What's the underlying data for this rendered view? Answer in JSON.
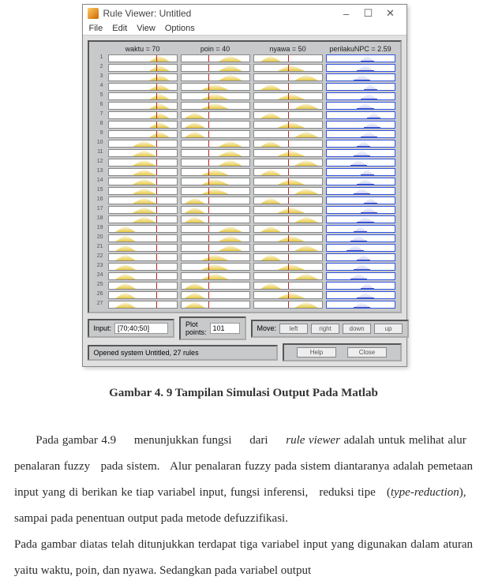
{
  "window": {
    "title": "Rule Viewer: Untitled",
    "minimize": "–",
    "restore": "☐",
    "close": "✕"
  },
  "menu": {
    "file": "File",
    "edit": "Edit",
    "view": "View",
    "options": "Options"
  },
  "viewer": {
    "headers": {
      "blank": "",
      "col1": "waktu = 70",
      "col2": "poin = 40",
      "col3": "nyawa = 50",
      "col4": "perilakuNPC = 2.59"
    },
    "num_rules": 27,
    "line_positions": {
      "col1": 70,
      "col2": 40,
      "col3": 50
    },
    "colors": {
      "mf_fill": "#e6c83c",
      "mf_output": "#3c50c8",
      "vline": "#c02020",
      "panel_bg": "#c8c9cb",
      "box_border": "#888888",
      "output_border": "#3355dd"
    },
    "rules": [
      {
        "c1": [
          60,
          30
        ],
        "c2": [
          55,
          35
        ],
        "c3": [
          10,
          30
        ],
        "c4": [
          50,
          20
        ]
      },
      {
        "c1": [
          60,
          30
        ],
        "c2": [
          55,
          35
        ],
        "c3": [
          35,
          40
        ],
        "c4": [
          45,
          25
        ]
      },
      {
        "c1": [
          60,
          30
        ],
        "c2": [
          55,
          35
        ],
        "c3": [
          60,
          35
        ],
        "c4": [
          40,
          25
        ]
      },
      {
        "c1": [
          60,
          30
        ],
        "c2": [
          30,
          40
        ],
        "c3": [
          10,
          30
        ],
        "c4": [
          55,
          20
        ]
      },
      {
        "c1": [
          60,
          30
        ],
        "c2": [
          30,
          40
        ],
        "c3": [
          35,
          40
        ],
        "c4": [
          50,
          25
        ]
      },
      {
        "c1": [
          60,
          30
        ],
        "c2": [
          30,
          40
        ],
        "c3": [
          60,
          35
        ],
        "c4": [
          45,
          25
        ]
      },
      {
        "c1": [
          60,
          30
        ],
        "c2": [
          5,
          30
        ],
        "c3": [
          10,
          30
        ],
        "c4": [
          60,
          20
        ]
      },
      {
        "c1": [
          60,
          30
        ],
        "c2": [
          5,
          30
        ],
        "c3": [
          35,
          40
        ],
        "c4": [
          55,
          25
        ]
      },
      {
        "c1": [
          60,
          30
        ],
        "c2": [
          5,
          30
        ],
        "c3": [
          60,
          35
        ],
        "c4": [
          50,
          25
        ]
      },
      {
        "c1": [
          35,
          35
        ],
        "c2": [
          55,
          35
        ],
        "c3": [
          10,
          30
        ],
        "c4": [
          45,
          20
        ]
      },
      {
        "c1": [
          35,
          35
        ],
        "c2": [
          55,
          35
        ],
        "c3": [
          35,
          40
        ],
        "c4": [
          40,
          25
        ]
      },
      {
        "c1": [
          35,
          35
        ],
        "c2": [
          55,
          35
        ],
        "c3": [
          60,
          35
        ],
        "c4": [
          35,
          25
        ]
      },
      {
        "c1": [
          35,
          35
        ],
        "c2": [
          30,
          40
        ],
        "c3": [
          10,
          30
        ],
        "c4": [
          50,
          20
        ]
      },
      {
        "c1": [
          35,
          35
        ],
        "c2": [
          30,
          40
        ],
        "c3": [
          35,
          40
        ],
        "c4": [
          45,
          25
        ]
      },
      {
        "c1": [
          35,
          35
        ],
        "c2": [
          30,
          40
        ],
        "c3": [
          60,
          35
        ],
        "c4": [
          40,
          25
        ]
      },
      {
        "c1": [
          35,
          35
        ],
        "c2": [
          5,
          30
        ],
        "c3": [
          10,
          30
        ],
        "c4": [
          55,
          20
        ]
      },
      {
        "c1": [
          35,
          35
        ],
        "c2": [
          5,
          30
        ],
        "c3": [
          35,
          40
        ],
        "c4": [
          50,
          25
        ]
      },
      {
        "c1": [
          35,
          35
        ],
        "c2": [
          5,
          30
        ],
        "c3": [
          60,
          35
        ],
        "c4": [
          45,
          25
        ]
      },
      {
        "c1": [
          10,
          30
        ],
        "c2": [
          55,
          35
        ],
        "c3": [
          10,
          30
        ],
        "c4": [
          40,
          20
        ]
      },
      {
        "c1": [
          10,
          30
        ],
        "c2": [
          55,
          35
        ],
        "c3": [
          35,
          40
        ],
        "c4": [
          35,
          25
        ]
      },
      {
        "c1": [
          10,
          30
        ],
        "c2": [
          55,
          35
        ],
        "c3": [
          60,
          35
        ],
        "c4": [
          30,
          25
        ]
      },
      {
        "c1": [
          10,
          30
        ],
        "c2": [
          30,
          40
        ],
        "c3": [
          10,
          30
        ],
        "c4": [
          45,
          20
        ]
      },
      {
        "c1": [
          10,
          30
        ],
        "c2": [
          30,
          40
        ],
        "c3": [
          35,
          40
        ],
        "c4": [
          40,
          25
        ]
      },
      {
        "c1": [
          10,
          30
        ],
        "c2": [
          30,
          40
        ],
        "c3": [
          60,
          35
        ],
        "c4": [
          35,
          25
        ]
      },
      {
        "c1": [
          10,
          30
        ],
        "c2": [
          5,
          30
        ],
        "c3": [
          10,
          30
        ],
        "c4": [
          50,
          20
        ]
      },
      {
        "c1": [
          10,
          30
        ],
        "c2": [
          5,
          30
        ],
        "c3": [
          35,
          40
        ],
        "c4": [
          45,
          25
        ]
      },
      {
        "c1": [
          10,
          30
        ],
        "c2": [
          5,
          30
        ],
        "c3": [
          60,
          35
        ],
        "c4": [
          40,
          25
        ]
      }
    ]
  },
  "controls": {
    "input_label": "Input:",
    "input_value": "[70;40;50]",
    "plotpoints_label": "Plot points:",
    "plotpoints_value": "101",
    "move_label": "Move:",
    "btn_left": "left",
    "btn_right": "right",
    "btn_down": "down",
    "btn_up": "up",
    "status": "Opened system Untitled, 27 rules",
    "btn_help": "Help",
    "btn_close": "Close"
  },
  "caption": "Gambar 4. 9 Tampilan Simulasi Output Pada Matlab",
  "paragraph1": "Pada gambar 4.9 menunjukkan fungsi dari rule viewer adalah untuk melihat alur penalaran fuzzy pada sistem. Alur penalaran fuzzy pada sistem diantaranya adalah pemetaan input yang di berikan ke tiap variabel input, fungsi inferensi, reduksi tipe (type-reduction), sampai pada penentuan output pada metode defuzzifikasi.",
  "paragraph2": "Pada gambar diatas telah ditunjukkan terdapat tiga variabel input yang digunakan dalam aturan yaitu waktu, poin, dan nyawa. Sedangkan pada variabel output"
}
